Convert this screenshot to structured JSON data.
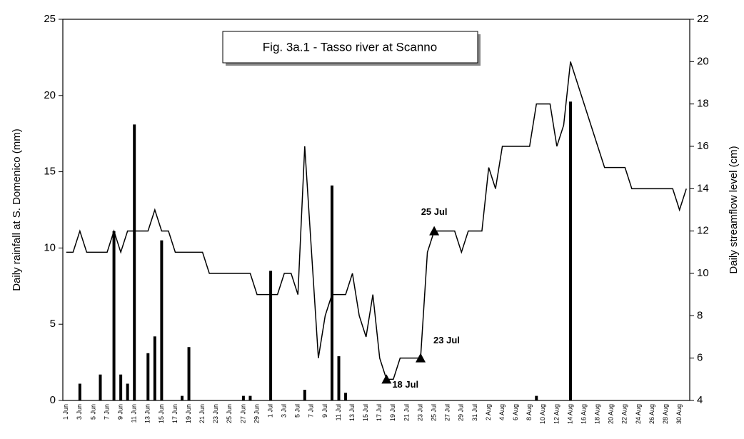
{
  "chart_data": {
    "type": "bar_line",
    "title": "Fig. 3a.1 - Tasso river at Scanno",
    "ylabel": "Daily rainfall at S. Domenico (mm)",
    "y2label": "Daily streamflow level (cm)",
    "categories": [
      "1 Jun",
      null,
      "3 Jun",
      null,
      "5 Jun",
      null,
      "7 Jun",
      null,
      "9 Jun",
      null,
      "11 Jun",
      null,
      "13 Jun",
      null,
      "15 Jun",
      null,
      "17 Jun",
      null,
      "19 Jun",
      null,
      "21 Jun",
      null,
      "23 Jun",
      null,
      "25 Jun",
      null,
      "27 Jun",
      null,
      "29 Jun",
      null,
      "1 Jul",
      null,
      "3 Jul",
      null,
      "5 Jul",
      null,
      "7 Jul",
      null,
      "9 Jul",
      null,
      "11 Jul",
      null,
      "13 Jul",
      null,
      "15 Jul",
      null,
      "17 Jul",
      null,
      "19 Jul",
      null,
      "21 Jul",
      null,
      "23 Jul",
      null,
      "25 Jul",
      null,
      "27 Jul",
      null,
      "29 Jul",
      null,
      "31 Jul",
      null,
      "2 Aug",
      null,
      "4 Aug",
      null,
      "6 Aug",
      null,
      "8 Aug",
      null,
      "10 Aug",
      null,
      "12 Aug",
      null,
      "14 Aug",
      null,
      "16 Aug",
      null,
      "18 Aug",
      null,
      "20 Aug",
      null,
      "22 Aug",
      null,
      "24 Aug",
      null,
      "26 Aug",
      null,
      "28 Aug",
      null,
      "30 Aug",
      null
    ],
    "series": [
      {
        "name": "Daily rainfall",
        "type": "bar",
        "color": "#000000",
        "values": [
          0,
          0,
          1.1,
          0,
          0,
          1.7,
          0,
          11.1,
          1.7,
          1.1,
          18.1,
          0,
          3.1,
          4.2,
          10.5,
          0,
          0,
          0.3,
          3.5,
          0,
          0,
          0,
          0,
          0,
          0,
          0,
          0.3,
          0.3,
          0,
          0,
          8.5,
          0,
          0,
          0,
          0,
          0.7,
          0,
          0,
          0,
          14.1,
          2.9,
          0.5,
          0,
          0,
          0,
          0,
          0,
          0,
          0,
          0,
          0,
          0,
          0,
          0,
          0,
          0,
          0,
          0,
          0,
          0,
          0,
          0,
          0,
          0,
          0,
          0,
          0,
          0,
          0,
          0.3,
          0,
          0,
          0,
          0,
          19.6,
          0,
          0,
          0,
          0,
          0,
          0,
          0,
          0,
          0,
          0,
          0,
          0,
          0,
          0,
          0,
          0,
          0
        ]
      },
      {
        "name": "Daily streamflow level",
        "type": "line",
        "axis": "y2",
        "color": "#000000",
        "values": [
          11,
          11,
          12,
          11,
          11,
          11,
          11,
          12,
          11,
          12,
          12,
          12,
          12,
          13,
          12,
          12,
          11,
          11,
          11,
          11,
          11,
          10,
          10,
          10,
          10,
          10,
          10,
          10,
          9,
          9,
          9,
          9,
          10,
          10,
          9,
          16,
          11,
          6,
          8,
          9,
          9,
          9,
          10,
          8,
          7,
          9,
          6,
          5,
          5,
          6,
          6,
          6,
          6,
          11,
          12,
          12,
          12,
          12,
          11,
          12,
          12,
          12,
          15,
          14,
          16,
          16,
          16,
          16,
          16,
          18,
          18,
          18,
          16,
          17,
          20,
          19,
          18,
          17,
          16,
          15,
          15,
          15,
          15,
          14,
          14,
          14,
          14,
          14,
          14,
          14,
          13,
          14
        ]
      }
    ],
    "annotations": [
      {
        "text": "18 Jul",
        "at": 47
      },
      {
        "text": "23 Jul",
        "at": 52
      },
      {
        "text": "25 Jul",
        "at": 54
      }
    ],
    "ylim": [
      0,
      25
    ],
    "yticks": [
      0,
      5,
      10,
      15,
      20,
      25
    ],
    "y2lim": [
      4,
      22
    ],
    "y2ticks": [
      4,
      6,
      8,
      10,
      12,
      14,
      16,
      18,
      20,
      22
    ],
    "grid": false
  }
}
